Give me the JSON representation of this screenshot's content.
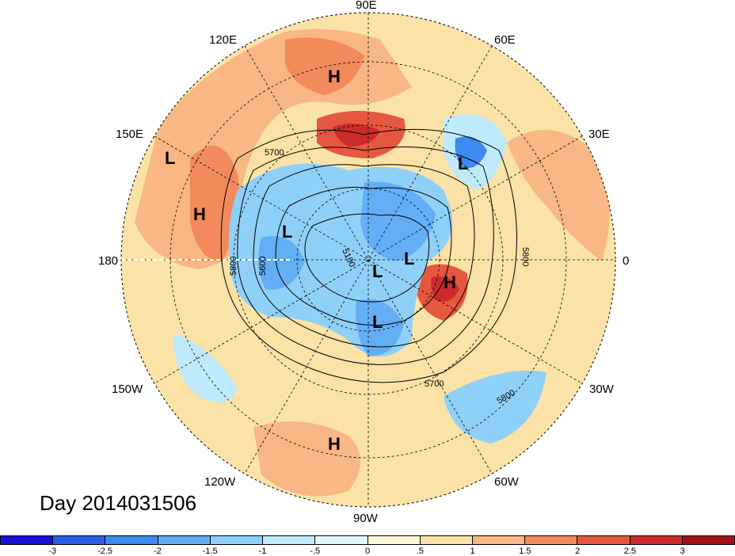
{
  "title": "Day 2014031506",
  "longitude_labels": {
    "top": "90E",
    "upper_left": "120E",
    "upper_right": "60E",
    "left_upper": "150E",
    "right_upper": "30E",
    "left": "180",
    "right": "0",
    "left_lower": "150W",
    "right_lower": "30W",
    "lower_left": "120W",
    "lower_right": "60W",
    "bottom": "90W"
  },
  "pressure_centers": [
    {
      "label": "H",
      "name": "high-north-siberia"
    },
    {
      "label": "L",
      "name": "low-north-pacific"
    },
    {
      "label": "H",
      "name": "high-pacific"
    },
    {
      "label": "L",
      "name": "low-east-siberia"
    },
    {
      "label": "L",
      "name": "low-europe"
    },
    {
      "label": "L",
      "name": "low-arctic-1"
    },
    {
      "label": "L",
      "name": "low-arctic-2"
    },
    {
      "label": "L",
      "name": "low-canada"
    },
    {
      "label": "H",
      "name": "high-north-atlantic"
    },
    {
      "label": "H",
      "name": "high-mexico"
    }
  ],
  "contour_labels": [
    "5700",
    "5800",
    "5600",
    "5100",
    "5800",
    "5700",
    "5800"
  ],
  "colorbar": {
    "colors": [
      "#1a10d6",
      "#2a5fe6",
      "#3e8bef",
      "#63aef5",
      "#8fd0f8",
      "#bfeafc",
      "#e3f6fd",
      "#fdf7d6",
      "#fbe2a6",
      "#f8b784",
      "#f28a5c",
      "#e6573f",
      "#cc2b2b",
      "#a50f15"
    ],
    "labels": [
      "-3",
      "-2.5",
      "-2",
      "-1.5",
      "-1",
      "-.5",
      "0",
      ".5",
      "1",
      "1.5",
      "2",
      "2.5",
      "3"
    ]
  }
}
